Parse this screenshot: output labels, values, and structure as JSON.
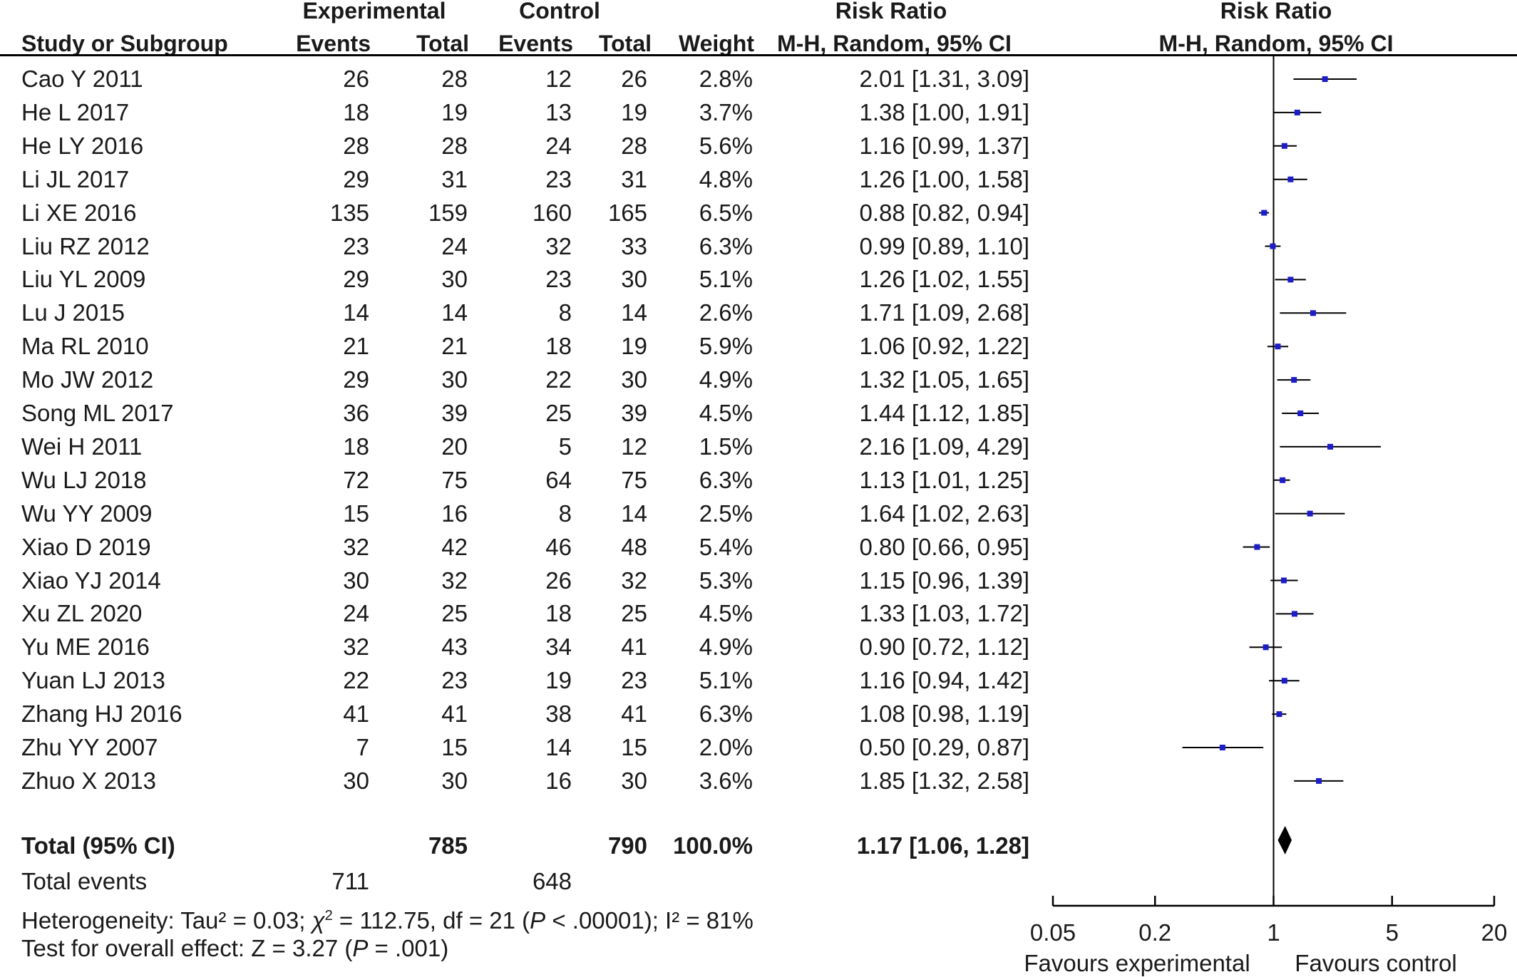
{
  "headers": {
    "experimental": "Experimental",
    "control": "Control",
    "risk_ratio_table": "Risk Ratio",
    "risk_ratio_plot": "Risk Ratio",
    "study": "Study or Subgroup",
    "exp_events": "Events",
    "exp_total": "Total",
    "ctl_events": "Events",
    "ctl_total": "Total",
    "weight": "Weight",
    "method_table": "M-H, Random, 95% CI",
    "method_plot": "M-H, Random, 95% CI"
  },
  "rows": [
    {
      "study": "Cao Y 2011",
      "e_events": "26",
      "e_total": "28",
      "c_events": "12",
      "c_total": "26",
      "weight": "2.8%",
      "rr": "2.01 [1.31, 3.09]"
    },
    {
      "study": "He L 2017",
      "e_events": "18",
      "e_total": "19",
      "c_events": "13",
      "c_total": "19",
      "weight": "3.7%",
      "rr": "1.38 [1.00, 1.91]"
    },
    {
      "study": "He LY 2016",
      "e_events": "28",
      "e_total": "28",
      "c_events": "24",
      "c_total": "28",
      "weight": "5.6%",
      "rr": "1.16 [0.99, 1.37]"
    },
    {
      "study": "Li JL 2017",
      "e_events": "29",
      "e_total": "31",
      "c_events": "23",
      "c_total": "31",
      "weight": "4.8%",
      "rr": "1.26 [1.00, 1.58]"
    },
    {
      "study": "Li XE 2016",
      "e_events": "135",
      "e_total": "159",
      "c_events": "160",
      "c_total": "165",
      "weight": "6.5%",
      "rr": "0.88 [0.82, 0.94]"
    },
    {
      "study": "Liu RZ 2012",
      "e_events": "23",
      "e_total": "24",
      "c_events": "32",
      "c_total": "33",
      "weight": "6.3%",
      "rr": "0.99 [0.89, 1.10]"
    },
    {
      "study": "Liu YL 2009",
      "e_events": "29",
      "e_total": "30",
      "c_events": "23",
      "c_total": "30",
      "weight": "5.1%",
      "rr": "1.26 [1.02, 1.55]"
    },
    {
      "study": "Lu J 2015",
      "e_events": "14",
      "e_total": "14",
      "c_events": "8",
      "c_total": "14",
      "weight": "2.6%",
      "rr": "1.71 [1.09, 2.68]"
    },
    {
      "study": "Ma RL 2010",
      "e_events": "21",
      "e_total": "21",
      "c_events": "18",
      "c_total": "19",
      "weight": "5.9%",
      "rr": "1.06 [0.92, 1.22]"
    },
    {
      "study": "Mo JW 2012",
      "e_events": "29",
      "e_total": "30",
      "c_events": "22",
      "c_total": "30",
      "weight": "4.9%",
      "rr": "1.32 [1.05, 1.65]"
    },
    {
      "study": "Song ML 2017",
      "e_events": "36",
      "e_total": "39",
      "c_events": "25",
      "c_total": "39",
      "weight": "4.5%",
      "rr": "1.44 [1.12, 1.85]"
    },
    {
      "study": "Wei H 2011",
      "e_events": "18",
      "e_total": "20",
      "c_events": "5",
      "c_total": "12",
      "weight": "1.5%",
      "rr": "2.16 [1.09, 4.29]"
    },
    {
      "study": "Wu LJ 2018",
      "e_events": "72",
      "e_total": "75",
      "c_events": "64",
      "c_total": "75",
      "weight": "6.3%",
      "rr": "1.13 [1.01, 1.25]"
    },
    {
      "study": "Wu YY 2009",
      "e_events": "15",
      "e_total": "16",
      "c_events": "8",
      "c_total": "14",
      "weight": "2.5%",
      "rr": "1.64 [1.02, 2.63]"
    },
    {
      "study": "Xiao D 2019",
      "e_events": "32",
      "e_total": "42",
      "c_events": "46",
      "c_total": "48",
      "weight": "5.4%",
      "rr": "0.80 [0.66, 0.95]"
    },
    {
      "study": "Xiao YJ  2014",
      "e_events": "30",
      "e_total": "32",
      "c_events": "26",
      "c_total": "32",
      "weight": "5.3%",
      "rr": "1.15 [0.96, 1.39]"
    },
    {
      "study": "Xu ZL 2020",
      "e_events": "24",
      "e_total": "25",
      "c_events": "18",
      "c_total": "25",
      "weight": "4.5%",
      "rr": "1.33 [1.03, 1.72]"
    },
    {
      "study": "Yu ME 2016",
      "e_events": "32",
      "e_total": "43",
      "c_events": "34",
      "c_total": "41",
      "weight": "4.9%",
      "rr": "0.90 [0.72, 1.12]"
    },
    {
      "study": "Yuan LJ 2013",
      "e_events": "22",
      "e_total": "23",
      "c_events": "19",
      "c_total": "23",
      "weight": "5.1%",
      "rr": "1.16 [0.94, 1.42]"
    },
    {
      "study": "Zhang HJ 2016",
      "e_events": "41",
      "e_total": "41",
      "c_events": "38",
      "c_total": "41",
      "weight": "6.3%",
      "rr": "1.08 [0.98, 1.19]"
    },
    {
      "study": "Zhu YY 2007",
      "e_events": "7",
      "e_total": "15",
      "c_events": "14",
      "c_total": "15",
      "weight": "2.0%",
      "rr": "0.50 [0.29, 0.87]"
    },
    {
      "study": "Zhuo X 2013",
      "e_events": "30",
      "e_total": "30",
      "c_events": "16",
      "c_total": "30",
      "weight": "3.6%",
      "rr": "1.85 [1.32, 2.58]"
    }
  ],
  "total": {
    "label": "Total (95% CI)",
    "e_total": "785",
    "c_total": "790",
    "weight": "100.0%",
    "rr": "1.17 [1.06, 1.28]"
  },
  "total_events": {
    "label": "Total events",
    "exp": "711",
    "ctl": "648"
  },
  "footer": {
    "heterogeneity_pre": "Heterogeneity: Tau² = 0.03; ",
    "chi_symbol": "χ",
    "chi_sup": "2",
    "heterogeneity_mid": " = 112.75, df = 21 (",
    "p_symbol_1": "P",
    "heterogeneity_post": " < .00001); I² = 81%",
    "overall_pre": "Test for overall effect: Z = 3.27 (",
    "p_symbol_2": "P",
    "overall_post": " = .001)"
  },
  "chart_data": {
    "type": "forest",
    "x_scale": "log",
    "xlim": [
      0.05,
      20
    ],
    "ticks": [
      "0.05",
      "0.2",
      "1",
      "5",
      "20"
    ],
    "tick_values": [
      0.05,
      0.2,
      1,
      5,
      20
    ],
    "null_line": 1,
    "favours_left": "Favours experimental",
    "favours_right": "Favours control",
    "marker_color": "#1c1cc8",
    "studies": [
      {
        "study": "Cao Y 2011",
        "rr": 2.01,
        "lo": 1.31,
        "hi": 3.09
      },
      {
        "study": "He L 2017",
        "rr": 1.38,
        "lo": 1.0,
        "hi": 1.91
      },
      {
        "study": "He LY 2016",
        "rr": 1.16,
        "lo": 0.99,
        "hi": 1.37
      },
      {
        "study": "Li JL 2017",
        "rr": 1.26,
        "lo": 1.0,
        "hi": 1.58
      },
      {
        "study": "Li XE 2016",
        "rr": 0.88,
        "lo": 0.82,
        "hi": 0.94
      },
      {
        "study": "Liu RZ 2012",
        "rr": 0.99,
        "lo": 0.89,
        "hi": 1.1
      },
      {
        "study": "Liu YL 2009",
        "rr": 1.26,
        "lo": 1.02,
        "hi": 1.55
      },
      {
        "study": "Lu J 2015",
        "rr": 1.71,
        "lo": 1.09,
        "hi": 2.68
      },
      {
        "study": "Ma RL 2010",
        "rr": 1.06,
        "lo": 0.92,
        "hi": 1.22
      },
      {
        "study": "Mo JW 2012",
        "rr": 1.32,
        "lo": 1.05,
        "hi": 1.65
      },
      {
        "study": "Song ML 2017",
        "rr": 1.44,
        "lo": 1.12,
        "hi": 1.85
      },
      {
        "study": "Wei H 2011",
        "rr": 2.16,
        "lo": 1.09,
        "hi": 4.29
      },
      {
        "study": "Wu LJ 2018",
        "rr": 1.13,
        "lo": 1.01,
        "hi": 1.25
      },
      {
        "study": "Wu YY 2009",
        "rr": 1.64,
        "lo": 1.02,
        "hi": 2.63
      },
      {
        "study": "Xiao D 2019",
        "rr": 0.8,
        "lo": 0.66,
        "hi": 0.95
      },
      {
        "study": "Xiao YJ  2014",
        "rr": 1.15,
        "lo": 0.96,
        "hi": 1.39
      },
      {
        "study": "Xu ZL 2020",
        "rr": 1.33,
        "lo": 1.03,
        "hi": 1.72
      },
      {
        "study": "Yu ME 2016",
        "rr": 0.9,
        "lo": 0.72,
        "hi": 1.12
      },
      {
        "study": "Yuan LJ 2013",
        "rr": 1.16,
        "lo": 0.94,
        "hi": 1.42
      },
      {
        "study": "Zhang HJ 2016",
        "rr": 1.08,
        "lo": 0.98,
        "hi": 1.19
      },
      {
        "study": "Zhu YY 2007",
        "rr": 0.5,
        "lo": 0.29,
        "hi": 0.87
      },
      {
        "study": "Zhuo X 2013",
        "rr": 1.85,
        "lo": 1.32,
        "hi": 2.58
      }
    ],
    "pooled": {
      "rr": 1.17,
      "lo": 1.06,
      "hi": 1.28
    }
  }
}
